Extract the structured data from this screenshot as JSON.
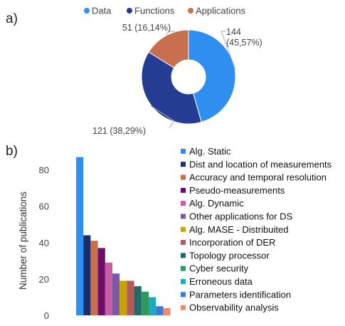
{
  "panel_a_label": "a)",
  "panel_b_label": "b)",
  "chart_data": [
    {
      "type": "pie",
      "style": "donut",
      "legend_position": "top",
      "categories": [
        "Data",
        "Functions",
        "Applications"
      ],
      "values": [
        144,
        121,
        51
      ],
      "percent_labels": [
        "(45,57%)",
        "(38,29%)",
        "(16,14%)"
      ],
      "data_labels": [
        "144 (45,57%)",
        "121 (38,29%)",
        "51 (16,14%)"
      ],
      "colors": [
        "#2f8ff0",
        "#253c93",
        "#c86f4e"
      ]
    },
    {
      "type": "bar",
      "ylabel": "Number of publications",
      "xlabel": "",
      "ylim": [
        0,
        90
      ],
      "yticks": [
        0,
        20,
        40,
        60,
        80
      ],
      "grid": false,
      "legend_position": "right",
      "categories": [
        "Alg. Static",
        "Dist and location of measurements",
        "Accuracy and temporal resolution",
        "Pseudo-measurements",
        "Alg. Dynamic",
        "Other applications for DS",
        "Alg. MASE - Distribuited",
        "Incorporation of  DER",
        "Topology processor",
        "Cyber security",
        "Erroneous data",
        "Parameters identification",
        "Observability analysis"
      ],
      "values": [
        87,
        44,
        41,
        37,
        29,
        23,
        19,
        19,
        16,
        13,
        10,
        5,
        4
      ],
      "colors": [
        "#2f8ff0",
        "#1d2f6b",
        "#c86f4e",
        "#6b0f6b",
        "#c75fa6",
        "#7a5aa6",
        "#c9a400",
        "#b55a5a",
        "#1f6b6b",
        "#2e9b5c",
        "#23a7bf",
        "#3c78d8",
        "#f08a6a"
      ]
    }
  ]
}
